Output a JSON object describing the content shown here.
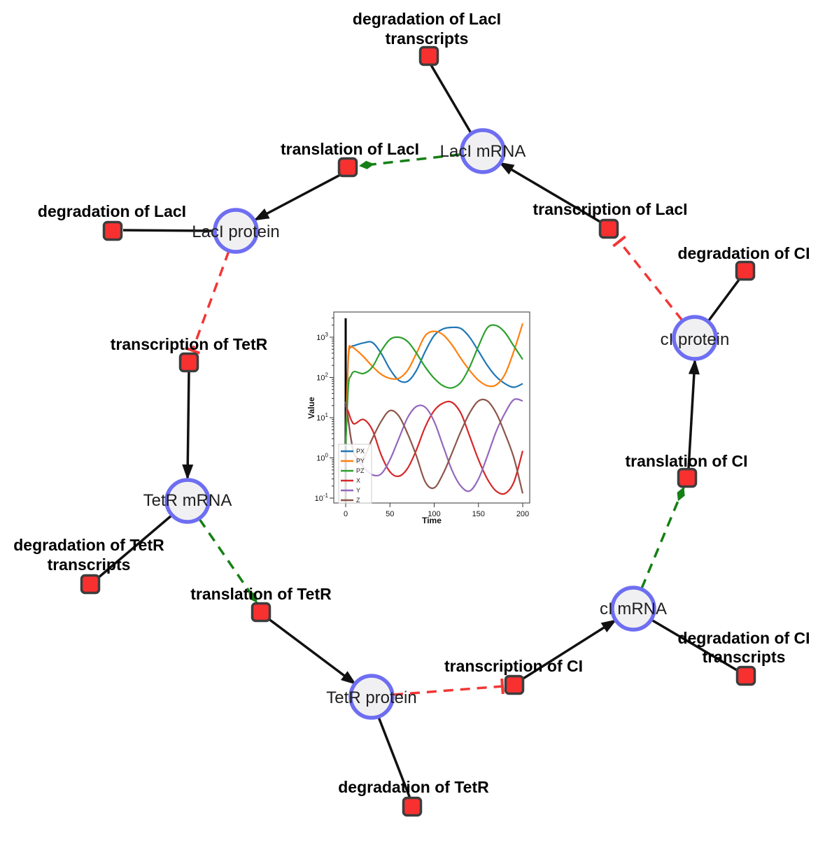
{
  "diagram": {
    "colors": {
      "species_fill": "#f0f0f2",
      "species_border": "#6e6ef2",
      "reaction_fill": "#f93030",
      "reaction_border": "#3d3d3d",
      "edge_production": "#111111",
      "edge_catalysis": "#158015",
      "edge_inhibition": "#f23636"
    },
    "species": [
      {
        "id": "laci-mrna",
        "label": "LacI mRNA"
      },
      {
        "id": "laci-protein",
        "label": "LacI protein"
      },
      {
        "id": "tetr-mrna",
        "label": "TetR mRNA"
      },
      {
        "id": "tetr-protein",
        "label": "TetR protein"
      },
      {
        "id": "ci-mrna",
        "label": "cI mRNA"
      },
      {
        "id": "ci-protein",
        "label": "cI protein"
      }
    ],
    "reactions": [
      {
        "id": "degradation-laci-transcripts",
        "label_lines": [
          "degradation of LacI",
          "transcripts"
        ]
      },
      {
        "id": "translation-laci",
        "label_lines": [
          "translation of LacI"
        ]
      },
      {
        "id": "transcription-laci",
        "label_lines": [
          "transcription of LacI"
        ]
      },
      {
        "id": "degradation-laci",
        "label_lines": [
          "degradation of LacI"
        ]
      },
      {
        "id": "transcription-tetr",
        "label_lines": [
          "transcription of TetR"
        ]
      },
      {
        "id": "degradation-tetr-transcripts",
        "label_lines": [
          "degradation of TetR",
          "transcripts"
        ]
      },
      {
        "id": "translation-tetr",
        "label_lines": [
          "translation of TetR"
        ]
      },
      {
        "id": "degradation-tetr",
        "label_lines": [
          "degradation of TetR"
        ]
      },
      {
        "id": "transcription-ci",
        "label_lines": [
          "transcription of CI"
        ]
      },
      {
        "id": "degradation-ci-transcripts",
        "label_lines": [
          "degradation of CI",
          "transcripts"
        ]
      },
      {
        "id": "translation-ci",
        "label_lines": [
          "translation of CI"
        ]
      },
      {
        "id": "degradation-ci",
        "label_lines": [
          "degradation of CI"
        ]
      }
    ],
    "edges": [
      {
        "from": "laci-mrna",
        "to": "degradation-laci-transcripts",
        "type": "consumption"
      },
      {
        "from": "laci-mrna",
        "to": "translation-laci",
        "type": "catalysis"
      },
      {
        "from": "translation-laci",
        "to": "laci-protein",
        "type": "production"
      },
      {
        "from": "transcription-laci",
        "to": "laci-mrna",
        "type": "production"
      },
      {
        "from": "laci-protein",
        "to": "degradation-laci",
        "type": "consumption"
      },
      {
        "from": "laci-protein",
        "to": "transcription-tetr",
        "type": "inhibition"
      },
      {
        "from": "transcription-tetr",
        "to": "tetr-mrna",
        "type": "production"
      },
      {
        "from": "tetr-mrna",
        "to": "degradation-tetr-transcripts",
        "type": "consumption"
      },
      {
        "from": "tetr-mrna",
        "to": "translation-tetr",
        "type": "catalysis"
      },
      {
        "from": "translation-tetr",
        "to": "tetr-protein",
        "type": "production"
      },
      {
        "from": "tetr-protein",
        "to": "degradation-tetr",
        "type": "consumption"
      },
      {
        "from": "tetr-protein",
        "to": "transcription-ci",
        "type": "inhibition"
      },
      {
        "from": "transcription-ci",
        "to": "ci-mrna",
        "type": "production"
      },
      {
        "from": "ci-mrna",
        "to": "degradation-ci-transcripts",
        "type": "consumption"
      },
      {
        "from": "ci-mrna",
        "to": "translation-ci",
        "type": "catalysis"
      },
      {
        "from": "translation-ci",
        "to": "ci-protein",
        "type": "production"
      },
      {
        "from": "ci-protein",
        "to": "degradation-ci",
        "type": "consumption"
      },
      {
        "from": "ci-protein",
        "to": "transcription-laci",
        "type": "inhibition"
      }
    ]
  },
  "chart_data": {
    "type": "line",
    "xlabel": "Time",
    "ylabel": "Value",
    "yscale": "log",
    "xlim": [
      -13,
      208
    ],
    "ylim_exponents": [
      -1.1,
      3.65
    ],
    "xticks": [
      0,
      50,
      100,
      150,
      200
    ],
    "ytick_exponents": [
      -1,
      0,
      1,
      2,
      3
    ],
    "legend_position": "lower left",
    "grid": false,
    "annotations": [
      {
        "type": "vline",
        "x": 0,
        "color": "#000000"
      }
    ],
    "x": [
      0,
      3,
      6,
      10,
      20,
      30,
      40,
      50,
      60,
      70,
      80,
      90,
      100,
      110,
      120,
      130,
      140,
      150,
      160,
      170,
      180,
      190,
      200
    ],
    "series": [
      {
        "name": "PX",
        "color": "#1f77b4",
        "values": [
          2,
          300,
          560,
          620,
          720,
          740,
          400,
          160,
          85,
          80,
          150,
          450,
          1100,
          1600,
          1750,
          1650,
          1000,
          450,
          200,
          105,
          70,
          57,
          70
        ]
      },
      {
        "name": "PY",
        "color": "#ff7f0e",
        "values": [
          2,
          350,
          560,
          520,
          330,
          190,
          120,
          95,
          95,
          150,
          400,
          1100,
          1400,
          1150,
          650,
          300,
          150,
          85,
          62,
          65,
          120,
          450,
          2200
        ]
      },
      {
        "name": "PZ",
        "color": "#2ca02c",
        "values": [
          2,
          60,
          110,
          140,
          125,
          180,
          450,
          880,
          1000,
          780,
          400,
          180,
          95,
          62,
          55,
          75,
          180,
          600,
          1700,
          1950,
          1300,
          600,
          280
        ]
      },
      {
        "name": "X",
        "color": "#d62728",
        "values": [
          20,
          14,
          9,
          7,
          9,
          5,
          1.2,
          0.45,
          0.35,
          0.55,
          1.6,
          6,
          15,
          23,
          24,
          13,
          3.5,
          0.9,
          0.3,
          0.15,
          0.13,
          0.25,
          1.5
        ]
      },
      {
        "name": "Y",
        "color": "#9467bd",
        "values": [
          25,
          8,
          3,
          1.2,
          0.6,
          0.38,
          0.4,
          0.9,
          3,
          10,
          19,
          18,
          8,
          2,
          0.5,
          0.2,
          0.15,
          0.3,
          1.1,
          4.5,
          13,
          28,
          26
        ]
      },
      {
        "name": "Z",
        "color": "#8c564b",
        "values": [
          25,
          9,
          3,
          1.2,
          1,
          3,
          8,
          15,
          11,
          4,
          1.1,
          0.25,
          0.18,
          0.4,
          1.3,
          4.5,
          13,
          26,
          26,
          13,
          4,
          1,
          0.13
        ]
      }
    ]
  }
}
